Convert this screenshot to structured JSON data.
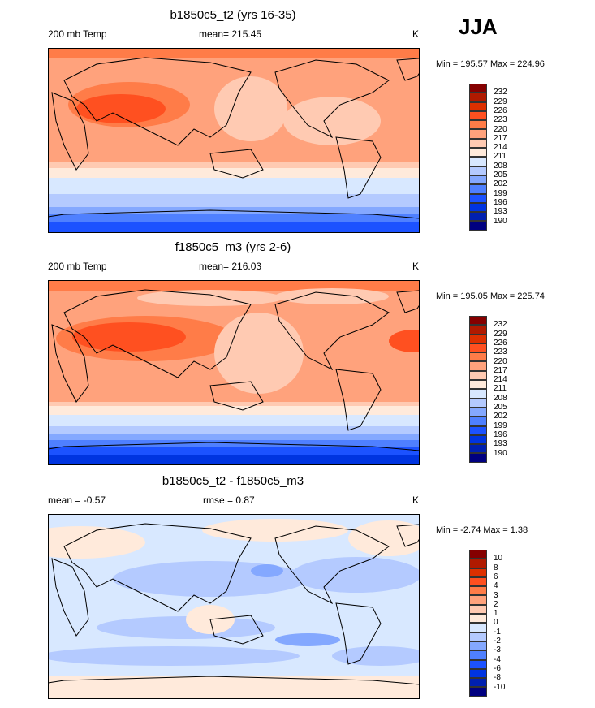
{
  "season": "JJA",
  "units": "K",
  "colors": [
    "#850000",
    "#b01a00",
    "#dd3000",
    "#ff5020",
    "#ff7c48",
    "#ffa27c",
    "#ffcab2",
    "#ffeadb",
    "#d8e8ff",
    "#b4caff",
    "#84a8ff",
    "#4f80ff",
    "#1c52ff",
    "#0034e0",
    "#0020b0",
    "#000080"
  ],
  "panels": [
    {
      "title": "b1850c5_t2 (yrs 16-35)",
      "left": "200 mb Temp",
      "center": "mean= 215.45",
      "right": "K",
      "minmax": "Min = 195.57 Max = 224.96",
      "levels": [
        "232",
        "229",
        "226",
        "223",
        "220",
        "217",
        "214",
        "211",
        "208",
        "205",
        "202",
        "199",
        "196",
        "193",
        "190"
      ]
    },
    {
      "title": "f1850c5_m3 (yrs 2-6)",
      "left": "200 mb Temp",
      "center": "mean= 216.03",
      "right": "K",
      "minmax": "Min = 195.05 Max = 225.74",
      "levels": [
        "232",
        "229",
        "226",
        "223",
        "220",
        "217",
        "214",
        "211",
        "208",
        "205",
        "202",
        "199",
        "196",
        "193",
        "190"
      ]
    },
    {
      "title": "b1850c5_t2 - f1850c5_m3",
      "left": "mean =  -0.57",
      "center": "rmse =   0.87",
      "right": "K",
      "minmax": "Min =  -2.74 Max =   1.38",
      "levels": [
        "10",
        "8",
        "6",
        "4",
        "3",
        "2",
        "1",
        "0",
        "-1",
        "-2",
        "-3",
        "-4",
        "-6",
        "-8",
        "-10"
      ]
    }
  ]
}
